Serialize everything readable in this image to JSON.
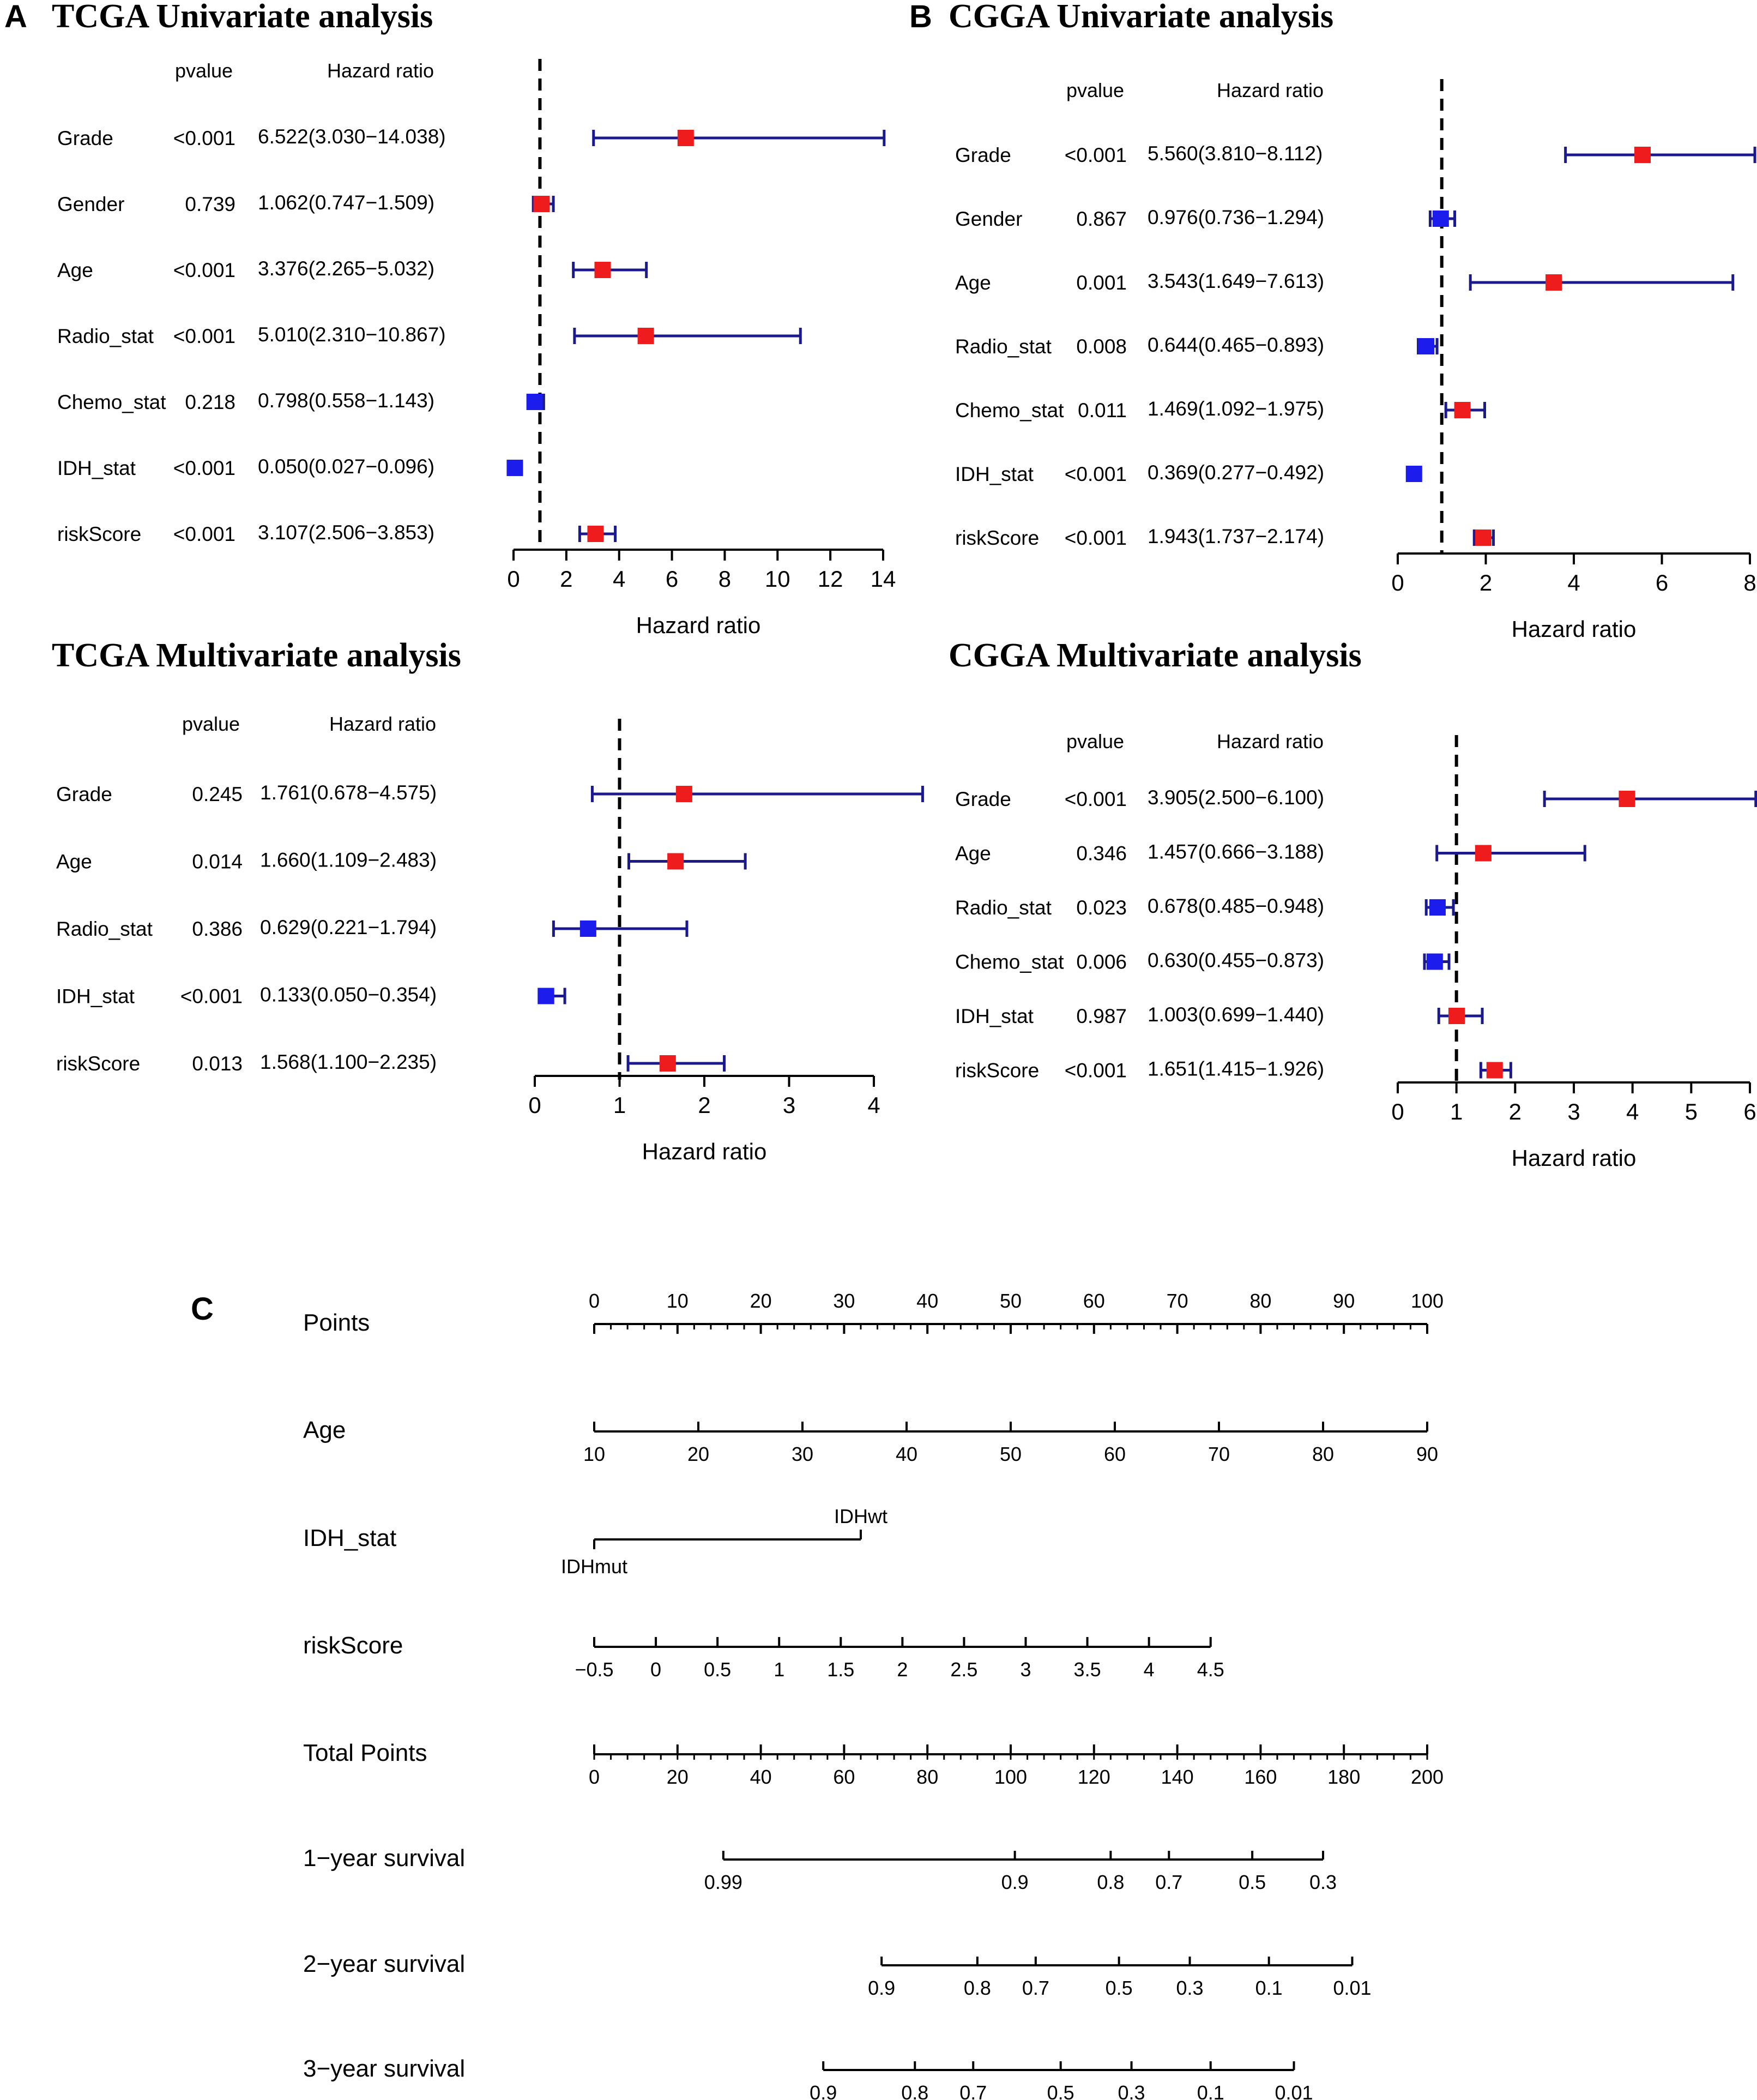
{
  "colors": {
    "ci": "#1a1a8c",
    "risk": "#ee1c1c",
    "protect": "#1c1ced",
    "axis": "#000000"
  },
  "chart_data": [
    {
      "type": "forest",
      "panel_letter": "A",
      "title": "TCGA Univariate analysis",
      "col_pvalue": "pvalue",
      "col_hr": "Hazard ratio",
      "xlabel": "Hazard ratio",
      "xlim": [
        0,
        14
      ],
      "ticks": [
        "0",
        "2",
        "4",
        "6",
        "8",
        "10",
        "12",
        "14"
      ],
      "ref": 1,
      "rows": [
        {
          "name": "Grade",
          "p": "<0.001",
          "hr_text": "6.522(3.030−14.038)",
          "hr": 6.522,
          "lo": 3.03,
          "hi": 14.038
        },
        {
          "name": "Gender",
          "p": "0.739",
          "hr_text": "1.062(0.747−1.509)",
          "hr": 1.062,
          "lo": 0.747,
          "hi": 1.509
        },
        {
          "name": "Age",
          "p": "<0.001",
          "hr_text": "3.376(2.265−5.032)",
          "hr": 3.376,
          "lo": 2.265,
          "hi": 5.032
        },
        {
          "name": "Radio_stat",
          "p": "<0.001",
          "hr_text": "5.010(2.310−10.867)",
          "hr": 5.01,
          "lo": 2.31,
          "hi": 10.867
        },
        {
          "name": "Chemo_stat",
          "p": "0.218",
          "hr_text": "0.798(0.558−1.143)",
          "hr": 0.798,
          "lo": 0.558,
          "hi": 1.143
        },
        {
          "name": "IDH_stat",
          "p": "<0.001",
          "hr_text": "0.050(0.027−0.096)",
          "hr": 0.05,
          "lo": 0.027,
          "hi": 0.096
        },
        {
          "name": "riskScore",
          "p": "<0.001",
          "hr_text": "3.107(2.506−3.853)",
          "hr": 3.107,
          "lo": 2.506,
          "hi": 3.853
        }
      ]
    },
    {
      "type": "forest",
      "panel_letter": "B",
      "title": "CGGA Univariate analysis",
      "col_pvalue": "pvalue",
      "col_hr": "Hazard ratio",
      "xlabel": "Hazard ratio",
      "xlim": [
        0,
        8
      ],
      "ticks": [
        "0",
        "2",
        "4",
        "6",
        "8"
      ],
      "ref": 1,
      "rows": [
        {
          "name": "Grade",
          "p": "<0.001",
          "hr_text": "5.560(3.810−8.112)",
          "hr": 5.56,
          "lo": 3.81,
          "hi": 8.112
        },
        {
          "name": "Gender",
          "p": "0.867",
          "hr_text": "0.976(0.736−1.294)",
          "hr": 0.976,
          "lo": 0.736,
          "hi": 1.294
        },
        {
          "name": "Age",
          "p": "0.001",
          "hr_text": "3.543(1.649−7.613)",
          "hr": 3.543,
          "lo": 1.649,
          "hi": 7.613
        },
        {
          "name": "Radio_stat",
          "p": "0.008",
          "hr_text": "0.644(0.465−0.893)",
          "hr": 0.644,
          "lo": 0.465,
          "hi": 0.893
        },
        {
          "name": "Chemo_stat",
          "p": "0.011",
          "hr_text": "1.469(1.092−1.975)",
          "hr": 1.469,
          "lo": 1.092,
          "hi": 1.975
        },
        {
          "name": "IDH_stat",
          "p": "<0.001",
          "hr_text": "0.369(0.277−0.492)",
          "hr": 0.369,
          "lo": 0.277,
          "hi": 0.492
        },
        {
          "name": "riskScore",
          "p": "<0.001",
          "hr_text": "1.943(1.737−2.174)",
          "hr": 1.943,
          "lo": 1.737,
          "hi": 2.174
        }
      ]
    },
    {
      "type": "forest",
      "panel_letter": "",
      "title": "TCGA Multivariate analysis",
      "col_pvalue": "pvalue",
      "col_hr": "Hazard ratio",
      "xlabel": "Hazard ratio",
      "xlim": [
        0,
        4
      ],
      "ticks": [
        "0",
        "1",
        "2",
        "3",
        "4"
      ],
      "ref": 1,
      "rows": [
        {
          "name": "Grade",
          "p": "0.245",
          "hr_text": "1.761(0.678−4.575)",
          "hr": 1.761,
          "lo": 0.678,
          "hi": 4.575
        },
        {
          "name": "Age",
          "p": "0.014",
          "hr_text": "1.660(1.109−2.483)",
          "hr": 1.66,
          "lo": 1.109,
          "hi": 2.483
        },
        {
          "name": "Radio_stat",
          "p": "0.386",
          "hr_text": "0.629(0.221−1.794)",
          "hr": 0.629,
          "lo": 0.221,
          "hi": 1.794
        },
        {
          "name": "IDH_stat",
          "p": "<0.001",
          "hr_text": "0.133(0.050−0.354)",
          "hr": 0.133,
          "lo": 0.05,
          "hi": 0.354
        },
        {
          "name": "riskScore",
          "p": "0.013",
          "hr_text": "1.568(1.100−2.235)",
          "hr": 1.568,
          "lo": 1.1,
          "hi": 2.235
        }
      ]
    },
    {
      "type": "forest",
      "panel_letter": "",
      "title": "CGGA Multivariate analysis",
      "col_pvalue": "pvalue",
      "col_hr": "Hazard ratio",
      "xlabel": "Hazard ratio",
      "xlim": [
        0,
        6
      ],
      "ticks": [
        "0",
        "1",
        "2",
        "3",
        "4",
        "5",
        "6"
      ],
      "ref": 1,
      "rows": [
        {
          "name": "Grade",
          "p": "<0.001",
          "hr_text": "3.905(2.500−6.100)",
          "hr": 3.905,
          "lo": 2.5,
          "hi": 6.1
        },
        {
          "name": "Age",
          "p": "0.346",
          "hr_text": "1.457(0.666−3.188)",
          "hr": 1.457,
          "lo": 0.666,
          "hi": 3.188
        },
        {
          "name": "Radio_stat",
          "p": "0.023",
          "hr_text": "0.678(0.485−0.948)",
          "hr": 0.678,
          "lo": 0.485,
          "hi": 0.948
        },
        {
          "name": "Chemo_stat",
          "p": "0.006",
          "hr_text": "0.630(0.455−0.873)",
          "hr": 0.63,
          "lo": 0.455,
          "hi": 0.873
        },
        {
          "name": "IDH_stat",
          "p": "0.987",
          "hr_text": "1.003(0.699−1.440)",
          "hr": 1.003,
          "lo": 0.699,
          "hi": 1.44
        },
        {
          "name": "riskScore",
          "p": "<0.001",
          "hr_text": "1.651(1.415−1.926)",
          "hr": 1.651,
          "lo": 1.415,
          "hi": 1.926
        }
      ]
    },
    {
      "type": "nomogram",
      "panel_letter": "C",
      "rows": [
        {
          "name": "Points",
          "kind": "axis",
          "tick_labels": [
            "0",
            "10",
            "20",
            "30",
            "40",
            "50",
            "60",
            "70",
            "80",
            "90",
            "100"
          ],
          "labels_above": true,
          "minor": 5
        },
        {
          "name": "Age",
          "kind": "axis",
          "tick_labels": [
            "10",
            "20",
            "30",
            "40",
            "50",
            "60",
            "70",
            "80",
            "90"
          ],
          "labels_above": false,
          "minor": 0
        },
        {
          "name": "IDH_stat",
          "kind": "categorical",
          "levels": [
            "IDHmut",
            "IDHwt"
          ],
          "level_points": [
            0,
            32
          ]
        },
        {
          "name": "riskScore",
          "kind": "axis",
          "tick_labels": [
            "−0.5",
            "0",
            "0.5",
            "1",
            "1.5",
            "2",
            "2.5",
            "3",
            "3.5",
            "4",
            "4.5"
          ],
          "labels_above": false,
          "minor": 0
        },
        {
          "name": "Total Points",
          "kind": "axis",
          "tick_labels": [
            "0",
            "20",
            "40",
            "60",
            "80",
            "100",
            "120",
            "140",
            "160",
            "180",
            "200"
          ],
          "labels_above": false,
          "minor": 5
        },
        {
          "name": "1−year survival",
          "kind": "survival",
          "labels": [
            "0.99",
            "0.9",
            "0.8",
            "0.7",
            "0.5",
            "0.3"
          ],
          "total_points": [
            31,
            101,
            124,
            138,
            158,
            175
          ]
        },
        {
          "name": "2−year survival",
          "kind": "survival",
          "labels": [
            "0.9",
            "0.8",
            "0.7",
            "0.5",
            "0.3",
            "0.1",
            "0.01"
          ],
          "total_points": [
            69,
            92,
            106,
            126,
            143,
            162,
            182
          ]
        },
        {
          "name": "3−year survival",
          "kind": "survival",
          "labels": [
            "0.9",
            "0.8",
            "0.7",
            "0.5",
            "0.3",
            "0.1",
            "0.01"
          ],
          "total_points": [
            55,
            77,
            91,
            112,
            129,
            148,
            168
          ]
        }
      ]
    }
  ]
}
